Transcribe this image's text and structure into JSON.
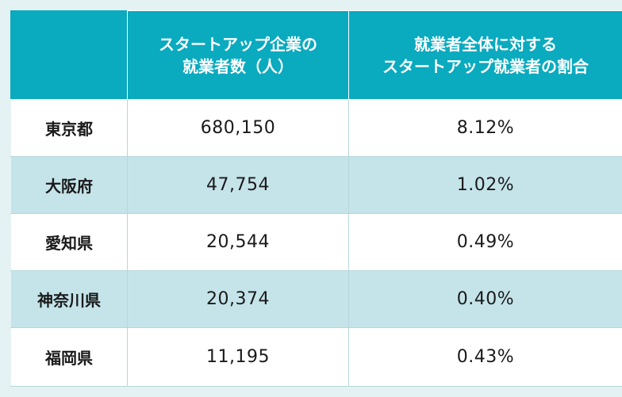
{
  "chart_data": {
    "type": "table",
    "columns": [
      "",
      "スタートアップ企業の就業者数（人）",
      "就業者全体に対するスタートアップ就業者の割合"
    ],
    "header_lines": [
      [
        ""
      ],
      [
        "スタートアップ企業の",
        "就業者数（人）"
      ],
      [
        "就業者全体に対する",
        "スタートアップ就業者の割合"
      ]
    ],
    "rows": [
      {
        "prefecture": "東京都",
        "workers": "680,150",
        "share": "8.12%"
      },
      {
        "prefecture": "大阪府",
        "workers": "47,754",
        "share": "1.02%"
      },
      {
        "prefecture": "愛知県",
        "workers": "20,544",
        "share": "0.49%"
      },
      {
        "prefecture": "神奈川県",
        "workers": "20,374",
        "share": "0.40%"
      },
      {
        "prefecture": "福岡県",
        "workers": "11,195",
        "share": "0.43%"
      }
    ]
  },
  "colors": {
    "header_bg": "#0aaabf",
    "row_alt_bg": "#c5e4ea",
    "row_bg": "#ffffff",
    "page_bg": "#e4f2f3"
  }
}
